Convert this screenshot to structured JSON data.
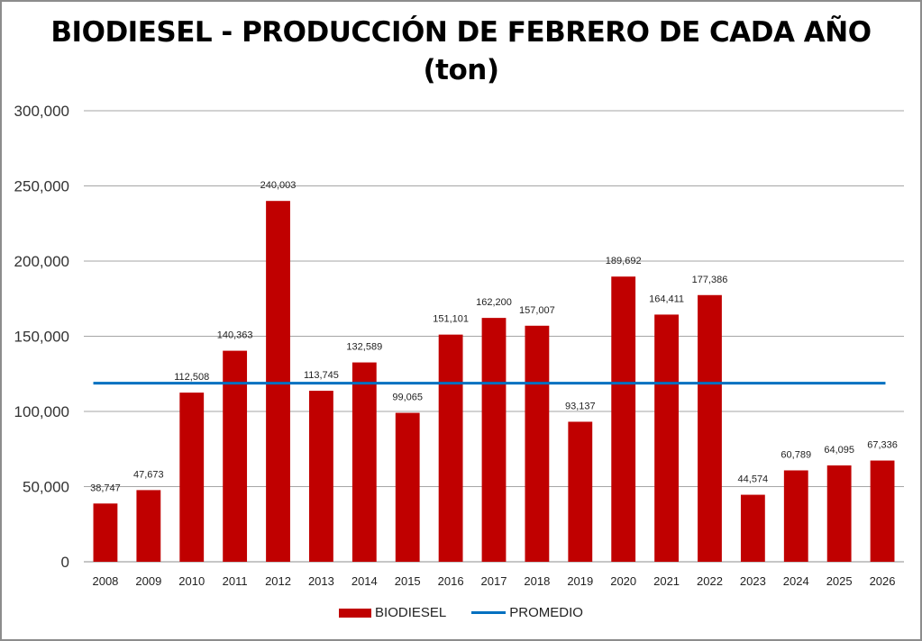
{
  "chart_data": {
    "type": "bar",
    "title": "BIODIESEL - PRODUCCIÓN DE FEBRERO DE CADA AÑO",
    "subtitle": "(ton)",
    "xlabel": "",
    "ylabel": "",
    "ylim": [
      0,
      300000
    ],
    "yticks": [
      0,
      50000,
      100000,
      150000,
      200000,
      250000,
      300000
    ],
    "ytick_labels": [
      "0",
      "50,000",
      "100,000",
      "150,000",
      "200,000",
      "250,000",
      "300,000"
    ],
    "grid": true,
    "legend_position": "bottom",
    "categories": [
      "2008",
      "2009",
      "2010",
      "2011",
      "2012",
      "2013",
      "2014",
      "2015",
      "2016",
      "2017",
      "2018",
      "2019",
      "2020",
      "2021",
      "2022",
      "2023",
      "2024",
      "2025",
      "2026"
    ],
    "series": [
      {
        "name": "BIODIESEL",
        "kind": "bar",
        "color": "#c00000",
        "values": [
          38747,
          47673,
          112508,
          140363,
          240003,
          113745,
          132589,
          99065,
          151101,
          162200,
          157007,
          93137,
          189692,
          164411,
          177386,
          44574,
          60789,
          64095,
          67336
        ],
        "labels": [
          "38,747",
          "47,673",
          "112,508",
          "140,363",
          "240,003",
          "113,745",
          "132,589",
          "99,065",
          "151,101",
          "162,200",
          "157,007",
          "93,137",
          "189,692",
          "164,411",
          "177,386",
          "44,574",
          "60,789",
          "64,095",
          "67,336"
        ]
      },
      {
        "name": "PROMEDIO",
        "kind": "line",
        "color": "#0070c0",
        "value": 118759
      }
    ]
  }
}
